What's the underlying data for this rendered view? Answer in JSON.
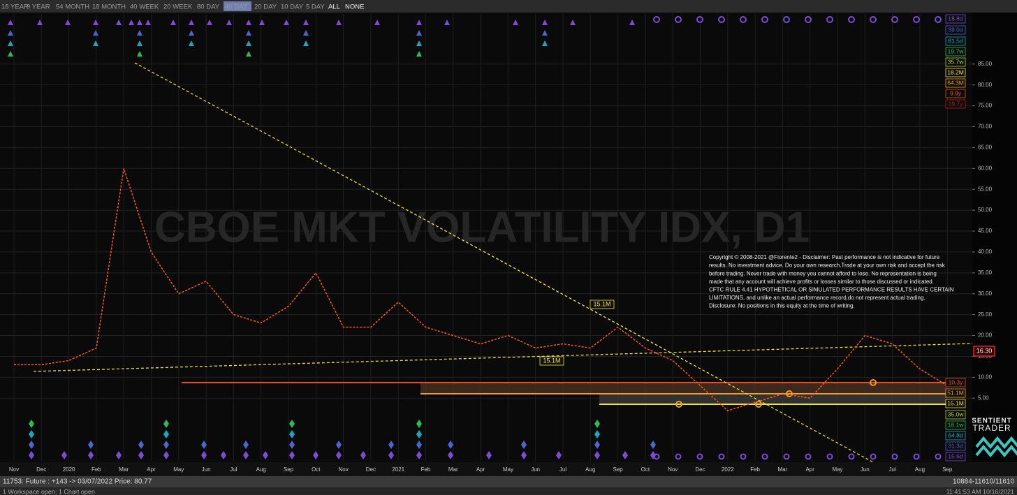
{
  "toolbar": {
    "buttons": [
      "18 YEAR",
      "9 YEAR",
      "54 MONTH",
      "18 MONTH",
      "40 WEEK",
      "20 WEEK",
      "80 DAY",
      "40 DAY",
      "20 DAY",
      "10 DAY",
      "5 DAY",
      "ALL",
      "NONE"
    ]
  },
  "chart_data": {
    "type": "line",
    "watermark": "CBOE MKT VOLATILITY IDX, D1",
    "categories": [
      "Nov",
      "Dec",
      "2020",
      "Feb",
      "Mar",
      "Apr",
      "May",
      "Jun",
      "Jul",
      "Aug",
      "Sep",
      "Oct",
      "Nov",
      "Dec",
      "2021",
      "Feb",
      "Mar",
      "Apr",
      "May",
      "Jun",
      "Jul",
      "Aug",
      "Sep",
      "Oct",
      "Nov",
      "Dec",
      "2022",
      "Feb",
      "Mar",
      "Apr",
      "May",
      "Jun",
      "Jul",
      "Aug",
      "Sep"
    ],
    "values": [
      13,
      13,
      14,
      17,
      60,
      40,
      30,
      33,
      25,
      23,
      27,
      35,
      22,
      22,
      28,
      22,
      20,
      18,
      20,
      17,
      18,
      17,
      22,
      17,
      14,
      8,
      2,
      4,
      6,
      5,
      12,
      20,
      18,
      12,
      8
    ],
    "color": "#ff5a1f",
    "ylim": [
      -10,
      97
    ],
    "yticks": [
      {
        "value": 5,
        "label": "5.00"
      },
      {
        "value": 10,
        "label": "10.00"
      },
      {
        "value": 15,
        "label": "15.00"
      },
      {
        "value": 20,
        "label": "20.00"
      },
      {
        "value": 25,
        "label": "25.00"
      },
      {
        "value": 30,
        "label": "30.00"
      },
      {
        "value": 35,
        "label": "35.00"
      },
      {
        "value": 40,
        "label": "40.00"
      },
      {
        "value": 45,
        "label": "45.00"
      },
      {
        "value": 50,
        "label": "50.00"
      },
      {
        "value": 55,
        "label": "55.00"
      },
      {
        "value": 60,
        "label": "60.00"
      },
      {
        "value": 65,
        "label": "65.00"
      },
      {
        "value": 70,
        "label": "70.00"
      },
      {
        "value": 75,
        "label": "75.00"
      },
      {
        "value": 80,
        "label": "80.00"
      },
      {
        "value": 85,
        "label": "85.00"
      }
    ],
    "grid": true,
    "price_label": "16.30",
    "chart_labels": [
      "15.1M",
      "15.1M"
    ],
    "cycle_labels": [
      {
        "label": "18.8d",
        "color": "#7b4cd8"
      },
      {
        "label": "39.0d",
        "color": "#4a66d0"
      },
      {
        "label": "81.5d",
        "color": "#1aa8c0"
      },
      {
        "label": "19.7w",
        "color": "#2dbb5a"
      },
      {
        "label": "35.7w",
        "color": "#b0d830"
      },
      {
        "label": "18.2M",
        "color": "#f2e040"
      },
      {
        "label": "64.3M",
        "color": "#f2a020"
      },
      {
        "label": "9.9y",
        "color": "#e8501a"
      },
      {
        "label": "19.7y",
        "color": "#b81c1c"
      },
      {
        "label": "10.3y",
        "color": "#e8501a"
      },
      {
        "label": "51.1M",
        "color": "#f2a020"
      },
      {
        "label": "15.1M",
        "color": "#f2e040"
      },
      {
        "label": "35.0w",
        "color": "#b0d830"
      },
      {
        "label": "18.1w",
        "color": "#2dbb5a"
      },
      {
        "label": "64.8d",
        "color": "#1aa8c0"
      },
      {
        "label": "31.3d",
        "color": "#4a66d0"
      },
      {
        "label": "15.6d",
        "color": "#7b4cd8"
      }
    ]
  },
  "disclaimer": [
    "Copyright © 2008-2021 @Fiorente2 -  Disclaimer: Past performance is not indicative for future",
    "results. No investment advice. Do your own research.Trade at your own risk and accept the risk",
    "before trading. Never trade with money you cannot afford to lose. No representation is being",
    "made that any account will achieve profits or losses similar to those discussed or indicated.",
    "CFTC RULE 4.41 HYPOTHETICAL OR SIMULATED PERFORMANCE RESULTS HAVE CERTAIN",
    "LIMITATIONS, and unlike an actual performance record,do not represent actual trading.",
    "Disclosure: No positions in this equity at the time of writing."
  ],
  "logo": [
    "SENTIENT",
    "TRADER"
  ],
  "status_bar": {
    "left": "11753: Future : +143 -> 03/07/2022 Price: 80.77",
    "right": "10884-11610/11610"
  },
  "footer": {
    "left": "1 Workspace open; 1 Chart open",
    "right": "11:41:53 AM  10/16/2021"
  }
}
